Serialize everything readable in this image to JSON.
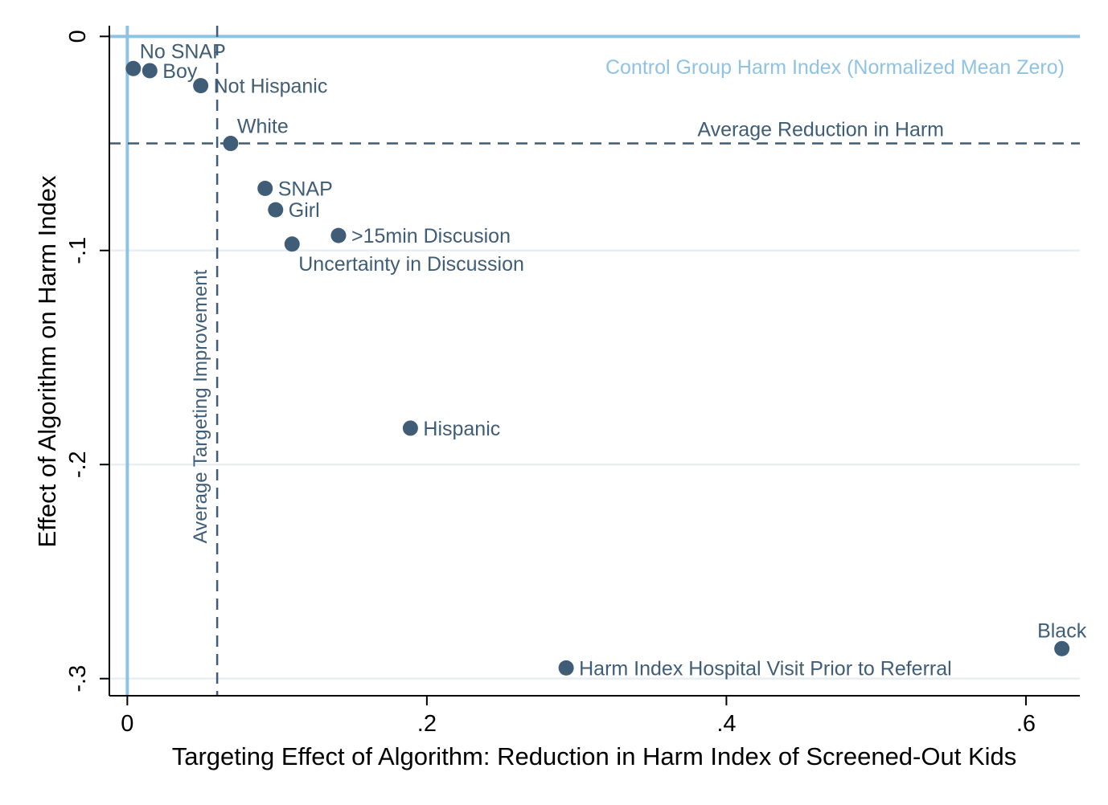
{
  "chart_data": {
    "type": "scatter",
    "xlabel": "Targeting Effect of Algorithm: Reduction in Harm Index of Screened-Out Kids",
    "ylabel": "Effect of Algorithm on Harm Index",
    "xlim": [
      -0.012,
      0.636
    ],
    "ylim": [
      -0.308,
      0.005
    ],
    "x_ticks": [
      0,
      0.2,
      0.4,
      0.6
    ],
    "x_tick_labels": [
      "0",
      ".2",
      ".4",
      ".6"
    ],
    "y_ticks": [
      0,
      -0.1,
      -0.2,
      -0.3
    ],
    "y_tick_labels": [
      "0",
      "-.1",
      "-.2",
      "-.3"
    ],
    "grid": "horizontal",
    "reference_lines": {
      "control_zero": {
        "label": "Control Group Harm Index (Normalized Mean Zero)",
        "y": 0,
        "x": 0,
        "color": "#8fc3e4"
      },
      "average_reduction": {
        "label": "Average Reduction in Harm",
        "y": -0.05,
        "color": "#3f5d76"
      },
      "average_targeting": {
        "label": "Average Targeting Improvement",
        "x": 0.06,
        "color": "#3f5d76"
      }
    },
    "marker_color": "#3f5d76",
    "points": [
      {
        "label": "No SNAP",
        "x": 0.004,
        "y": -0.015,
        "pos": "above-right"
      },
      {
        "label": "Boy",
        "x": 0.015,
        "y": -0.016,
        "pos": "right"
      },
      {
        "label": "Not Hispanic",
        "x": 0.049,
        "y": -0.023,
        "pos": "right"
      },
      {
        "label": "White",
        "x": 0.069,
        "y": -0.05,
        "pos": "above-right"
      },
      {
        "label": "SNAP",
        "x": 0.092,
        "y": -0.071,
        "pos": "right"
      },
      {
        "label": "Girl",
        "x": 0.099,
        "y": -0.081,
        "pos": "right"
      },
      {
        "label": ">15min Discusion",
        "x": 0.141,
        "y": -0.093,
        "pos": "right"
      },
      {
        "label": "Uncertainty in Discussion",
        "x": 0.11,
        "y": -0.097,
        "pos": "below-right"
      },
      {
        "label": "Hispanic",
        "x": 0.189,
        "y": -0.183,
        "pos": "right"
      },
      {
        "label": "Black",
        "x": 0.624,
        "y": -0.286,
        "pos": "above"
      },
      {
        "label": "Harm Index Hospital Visit Prior to Referral",
        "x": 0.293,
        "y": -0.295,
        "pos": "right"
      }
    ]
  }
}
